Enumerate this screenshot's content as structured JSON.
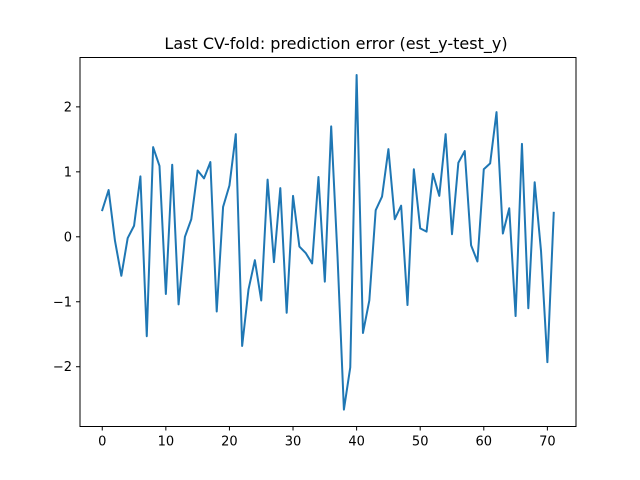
{
  "chart_data": {
    "type": "line",
    "title": "Last CV-fold: prediction error (est_y-test_y)",
    "xlabel": "",
    "ylabel": "",
    "xlim": [
      -3.5,
      74.5
    ],
    "ylim": [
      -2.92,
      2.76
    ],
    "xticks": [
      0,
      10,
      20,
      30,
      40,
      50,
      60,
      70
    ],
    "xtick_labels": [
      "0",
      "10",
      "20",
      "30",
      "40",
      "50",
      "60",
      "70"
    ],
    "yticks": [
      -2,
      -1,
      0,
      1,
      2
    ],
    "ytick_labels": [
      "−2",
      "−1",
      "0",
      "1",
      "2"
    ],
    "grid": false,
    "series": [
      {
        "color": "#1f77b4",
        "x": [
          0,
          1,
          2,
          3,
          4,
          5,
          6,
          7,
          8,
          9,
          10,
          11,
          12,
          13,
          14,
          15,
          16,
          17,
          18,
          19,
          20,
          21,
          22,
          23,
          24,
          25,
          26,
          27,
          28,
          29,
          30,
          31,
          32,
          33,
          34,
          35,
          36,
          37,
          38,
          39,
          40,
          41,
          42,
          43,
          44,
          45,
          46,
          47,
          48,
          49,
          50,
          51,
          52,
          53,
          54,
          55,
          56,
          57,
          58,
          59,
          60,
          61,
          62,
          63,
          64,
          65,
          66,
          67,
          68,
          69,
          70,
          71
        ],
        "values": [
          0.41,
          0.72,
          -0.06,
          -0.6,
          -0.02,
          0.17,
          0.93,
          -1.53,
          1.38,
          1.09,
          -0.88,
          1.11,
          -1.04,
          0.0,
          0.27,
          1.02,
          0.9,
          1.15,
          -1.15,
          0.46,
          0.79,
          1.58,
          -1.68,
          -0.81,
          -0.36,
          -0.98,
          0.88,
          -0.39,
          0.75,
          -1.17,
          0.63,
          -0.15,
          -0.25,
          -0.41,
          0.92,
          -0.69,
          1.7,
          -0.31,
          -2.66,
          -2.01,
          2.49,
          -1.48,
          -0.98,
          0.41,
          0.62,
          1.35,
          0.27,
          0.48,
          -1.05,
          1.04,
          0.13,
          0.08,
          0.97,
          0.63,
          1.58,
          0.04,
          1.14,
          1.32,
          -0.13,
          -0.38,
          1.04,
          1.13,
          1.92,
          0.05,
          0.44,
          -1.22,
          1.43,
          -1.1,
          0.84,
          -0.22,
          -1.93,
          0.37
        ]
      }
    ]
  }
}
